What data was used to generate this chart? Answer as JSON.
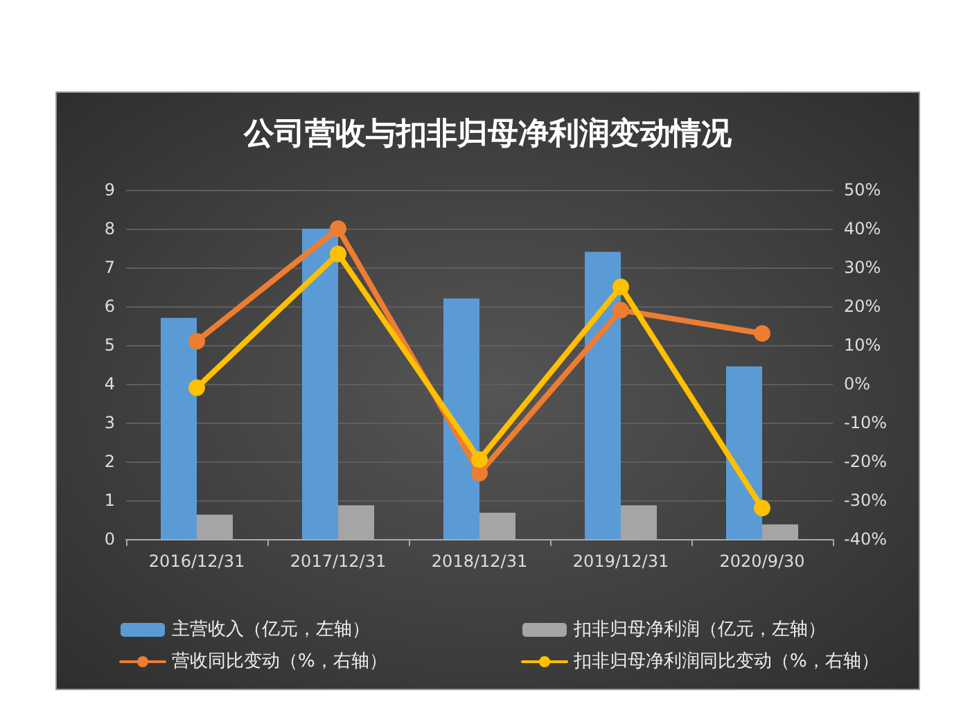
{
  "chart_data": {
    "type": "bar",
    "title": "公司营收与扣非归母净利润变动情况",
    "categories": [
      "2016/12/31",
      "2017/12/31",
      "2018/12/31",
      "2019/12/31",
      "2020/9/30"
    ],
    "series": [
      {
        "name": "主营收入（亿元，左轴）",
        "color": "#5b9bd5",
        "values": [
          5.7,
          8.0,
          6.2,
          7.4,
          4.45
        ]
      },
      {
        "name": "扣非归母净利润（亿元，左轴）",
        "color": "#a5a5a5",
        "values": [
          0.63,
          0.87,
          0.68,
          0.87,
          0.38
        ]
      },
      {
        "name": "营收同比变动（%，右轴）",
        "type": "line",
        "axis": "y2",
        "color": "#ed7d31",
        "values": [
          11,
          40,
          -23,
          19,
          13
        ]
      },
      {
        "name": "扣非归母净利润同比变动（%，右轴）",
        "type": "line",
        "axis": "y2",
        "color": "#ffc000",
        "values": [
          -1,
          33.5,
          -19.5,
          25,
          -32
        ]
      }
    ],
    "ylim": [
      0,
      9
    ],
    "yticks": [
      0,
      1,
      2,
      3,
      4,
      5,
      6,
      7,
      8,
      9
    ],
    "y2lim": [
      -40,
      50
    ],
    "y2ticks": [
      {
        "value": -40,
        "label": "-40%"
      },
      {
        "value": -30,
        "label": "-30%"
      },
      {
        "value": -20,
        "label": "-20%"
      },
      {
        "value": -10,
        "label": "-10%"
      },
      {
        "value": 0,
        "label": "0%"
      },
      {
        "value": 10,
        "label": "10%"
      },
      {
        "value": 20,
        "label": "20%"
      },
      {
        "value": 30,
        "label": "30%"
      },
      {
        "value": 40,
        "label": "40%"
      },
      {
        "value": 50,
        "label": "50%"
      }
    ],
    "grid": "y",
    "legend": "bottom",
    "marker": "circle",
    "line_style": "solid"
  }
}
